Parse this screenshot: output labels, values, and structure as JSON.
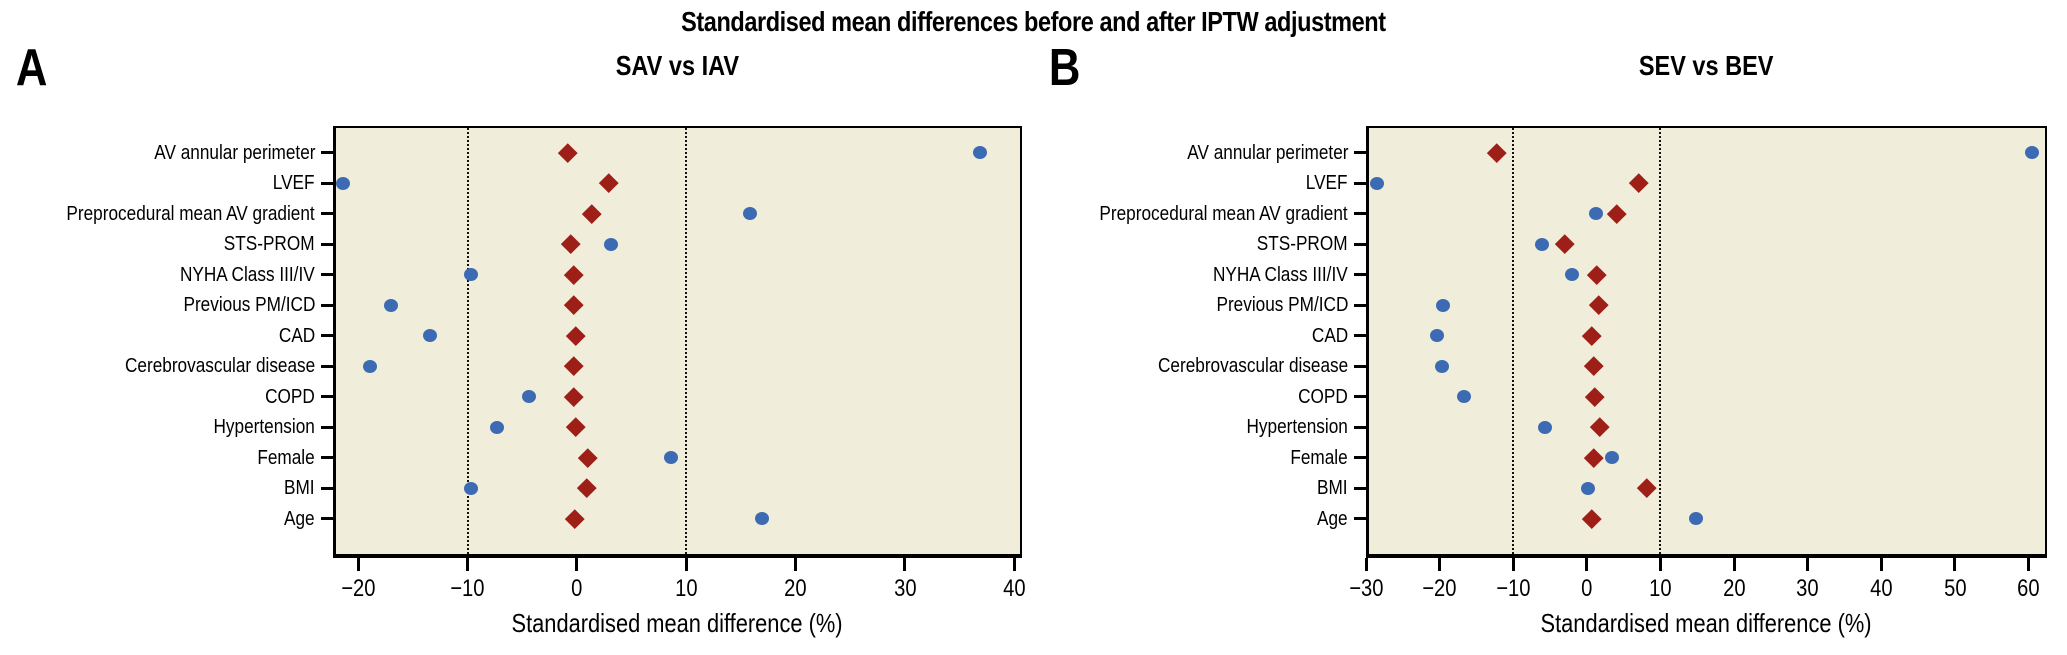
{
  "figure_title": "Standardised mean differences before and after IPTW adjustment",
  "colors": {
    "figure_background": "#ffffff",
    "plot_background": "#f0edda",
    "before_series": "#3c6ab3",
    "after_series": "#9e1f17",
    "axis_and_text": "#000000",
    "reference_line": "#111111"
  },
  "chart_data": [
    {
      "type": "scatter",
      "panel_label": "A",
      "title": "SAV vs IAV",
      "xlabel": "Standardised mean difference (%)",
      "xlim": [
        -22.3,
        40.7
      ],
      "xticks": [
        -20,
        -10,
        0,
        10,
        20,
        30,
        40
      ],
      "reference_lines": [
        -10,
        10
      ],
      "grid": false,
      "legend": "none",
      "categories": [
        "AV annular perimeter",
        "LVEF",
        "Preprocedural mean AV gradient",
        "STS-PROM",
        "NYHA Class III/IV",
        "Previous PM/ICD",
        "CAD",
        "Cerebrovascular disease",
        "COPD",
        "Hypertension",
        "Female",
        "BMI",
        "Age"
      ],
      "series": [
        {
          "name": "Before adjustment",
          "marker": "circle",
          "color": "#3c6ab3",
          "values": [
            36.9,
            -21.4,
            15.8,
            3.1,
            -9.7,
            -17.0,
            -13.4,
            -18.9,
            -4.4,
            -7.3,
            8.6,
            -9.7,
            16.9
          ]
        },
        {
          "name": "After IPTW adjustment",
          "marker": "diamond",
          "color": "#9e1f17",
          "values": [
            -0.8,
            2.9,
            1.4,
            -0.6,
            -0.3,
            -0.3,
            -0.1,
            -0.3,
            -0.3,
            -0.1,
            1.0,
            0.9,
            -0.2
          ]
        }
      ]
    },
    {
      "type": "scatter",
      "panel_label": "B",
      "title": "SEV vs BEV",
      "xlabel": "Standardised mean difference (%)",
      "xlim": [
        -30,
        62.5
      ],
      "xticks": [
        -30,
        -20,
        -10,
        0,
        10,
        20,
        30,
        40,
        50,
        60
      ],
      "reference_lines": [
        -10,
        10
      ],
      "grid": false,
      "legend": "none",
      "categories": [
        "AV annular perimeter",
        "LVEF",
        "Preprocedural mean AV gradient",
        "STS-PROM",
        "NYHA Class III/IV",
        "Previous PM/ICD",
        "CAD",
        "Cerebrovascular disease",
        "COPD",
        "Hypertension",
        "Female",
        "BMI",
        "Age"
      ],
      "series": [
        {
          "name": "Before adjustment",
          "marker": "circle",
          "color": "#3c6ab3",
          "values": [
            60.5,
            -28.5,
            1.2,
            -6.1,
            -2.0,
            -19.5,
            -20.3,
            -19.7,
            -16.7,
            -5.7,
            3.4,
            0.2,
            14.8
          ]
        },
        {
          "name": "After IPTW adjustment",
          "marker": "diamond",
          "color": "#9e1f17",
          "values": [
            -12.3,
            7.0,
            4.0,
            -3.0,
            1.4,
            1.6,
            0.6,
            1.0,
            1.1,
            1.7,
            1.0,
            8.1,
            0.6
          ]
        }
      ]
    }
  ]
}
